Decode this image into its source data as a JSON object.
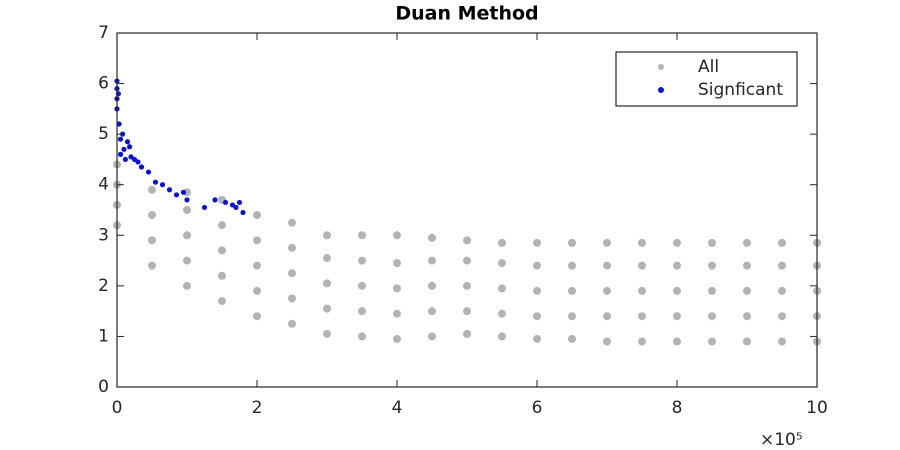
{
  "chart_data": {
    "type": "scatter",
    "title": "Duan Method",
    "x_exponent_label": "×10⁵",
    "xlim": [
      0,
      10
    ],
    "xticks": [
      0,
      2,
      4,
      6,
      8,
      10
    ],
    "ylim": [
      0,
      7
    ],
    "yticks": [
      0,
      1,
      2,
      3,
      4,
      5,
      6,
      7
    ],
    "legend": "upper right",
    "series": [
      {
        "name": "All",
        "color": "#b3b3b3",
        "x": [
          0,
          0,
          0,
          0,
          0.5,
          0.5,
          0.5,
          0.5,
          1,
          1,
          1,
          1,
          1,
          1.5,
          1.5,
          1.5,
          1.5,
          1.5,
          2,
          2,
          2,
          2,
          2,
          2.5,
          2.5,
          2.5,
          2.5,
          2.5,
          3,
          3,
          3,
          3,
          3,
          3.5,
          3.5,
          3.5,
          3.5,
          3.5,
          4,
          4,
          4,
          4,
          4,
          4.5,
          4.5,
          4.5,
          4.5,
          4.5,
          5,
          5,
          5,
          5,
          5,
          5.5,
          5.5,
          5.5,
          5.5,
          5.5,
          6,
          6,
          6,
          6,
          6,
          6.5,
          6.5,
          6.5,
          6.5,
          6.5,
          7,
          7,
          7,
          7,
          7,
          7.5,
          7.5,
          7.5,
          7.5,
          7.5,
          8,
          8,
          8,
          8,
          8,
          8.5,
          8.5,
          8.5,
          8.5,
          8.5,
          9,
          9,
          9,
          9,
          9,
          9.5,
          9.5,
          9.5,
          9.5,
          9.5,
          10,
          10,
          10,
          10,
          10
        ],
        "values": [
          3.2,
          3.6,
          4.0,
          4.4,
          2.4,
          2.9,
          3.4,
          3.9,
          2.0,
          2.5,
          3.0,
          3.5,
          3.85,
          1.7,
          2.2,
          2.7,
          3.2,
          3.7,
          1.4,
          1.9,
          2.4,
          2.9,
          3.4,
          1.25,
          1.75,
          2.25,
          2.75,
          3.25,
          1.05,
          1.55,
          2.05,
          2.55,
          3.0,
          1.0,
          1.5,
          2.0,
          2.5,
          3.0,
          0.95,
          1.45,
          1.95,
          2.45,
          3.0,
          1.0,
          1.5,
          2.0,
          2.5,
          2.95,
          1.05,
          1.5,
          2.0,
          2.5,
          2.9,
          1.0,
          1.45,
          1.95,
          2.45,
          2.85,
          0.95,
          1.4,
          1.9,
          2.4,
          2.85,
          0.95,
          1.4,
          1.9,
          2.4,
          2.85,
          0.9,
          1.4,
          1.9,
          2.4,
          2.85,
          0.9,
          1.4,
          1.9,
          2.4,
          2.85,
          0.9,
          1.4,
          1.9,
          2.4,
          2.85,
          0.9,
          1.4,
          1.9,
          2.4,
          2.85,
          0.9,
          1.4,
          1.9,
          2.4,
          2.85,
          0.9,
          1.4,
          1.9,
          2.4,
          2.85,
          0.9,
          1.4,
          1.9,
          2.4,
          2.85
        ]
      },
      {
        "name": "Signficant",
        "color": "#0a14d8",
        "x": [
          0,
          0,
          0,
          0,
          0.02,
          0.03,
          0.05,
          0.05,
          0.08,
          0.1,
          0.12,
          0.15,
          0.18,
          0.2,
          0.25,
          0.3,
          0.35,
          0.45,
          0.55,
          0.65,
          0.75,
          0.85,
          0.95,
          1.0,
          1.25,
          1.4,
          1.55,
          1.65,
          1.7,
          1.75,
          1.8
        ],
        "values": [
          6.05,
          5.9,
          5.7,
          5.5,
          5.8,
          5.2,
          4.9,
          4.6,
          5.0,
          4.7,
          4.5,
          4.85,
          4.75,
          4.55,
          4.5,
          4.45,
          4.35,
          4.25,
          4.05,
          4.0,
          3.9,
          3.8,
          3.85,
          3.7,
          3.55,
          3.7,
          3.65,
          3.6,
          3.55,
          3.65,
          3.45
        ]
      }
    ]
  }
}
